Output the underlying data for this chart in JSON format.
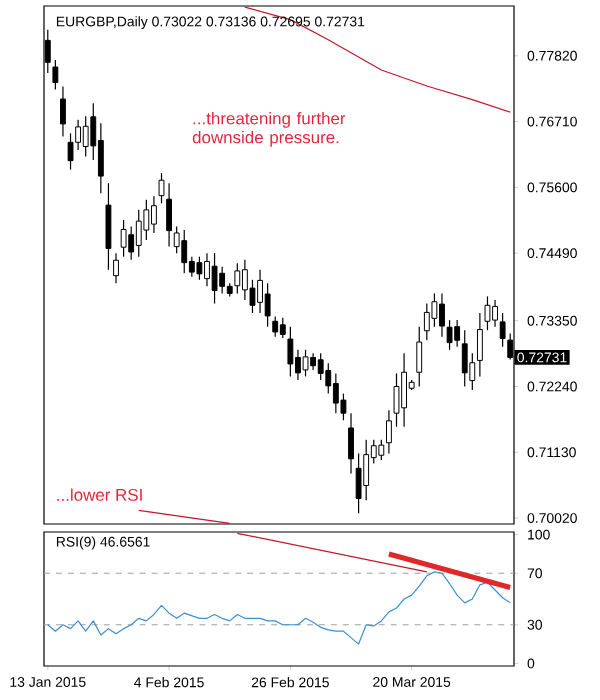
{
  "chart_data": [
    {
      "type": "candlestick",
      "title": "EURGBP,Daily  0.73022 0.73136 0.72695 0.72731",
      "categories": [
        null,
        null,
        null,
        null,
        null,
        null,
        null,
        null,
        null,
        null,
        null,
        null,
        null,
        null,
        null,
        null,
        null,
        null,
        null,
        null,
        null,
        null,
        null,
        null,
        null,
        null,
        null,
        null,
        null,
        null,
        null,
        null,
        null,
        null,
        null,
        null,
        null,
        null,
        null,
        null,
        null,
        null,
        null,
        null,
        null,
        null,
        null,
        null,
        null,
        null,
        null,
        null,
        null,
        null,
        null,
        null,
        null,
        null,
        null,
        null,
        null,
        null
      ],
      "ohlc": [
        [
          0.7808,
          0.7826,
          0.7753,
          0.7771
        ],
        [
          0.7763,
          0.7775,
          0.7725,
          0.7737
        ],
        [
          0.7709,
          0.773,
          0.7646,
          0.7667
        ],
        [
          0.7636,
          0.7651,
          0.759,
          0.7605
        ],
        [
          0.7636,
          0.7674,
          0.7623,
          0.7662
        ],
        [
          0.7629,
          0.768,
          0.7612,
          0.7663
        ],
        [
          0.7679,
          0.7702,
          0.7606,
          0.763
        ],
        [
          0.7639,
          0.7668,
          0.755,
          0.7579
        ],
        [
          0.753,
          0.7567,
          0.7421,
          0.7457
        ],
        [
          0.7411,
          0.7449,
          0.7398,
          0.7437
        ],
        [
          0.7459,
          0.7505,
          0.7443,
          0.7489
        ],
        [
          0.748,
          0.7494,
          0.7438,
          0.7451
        ],
        [
          0.7462,
          0.7522,
          0.7443,
          0.7503
        ],
        [
          0.7488,
          0.7539,
          0.7471,
          0.7522
        ],
        [
          0.7498,
          0.7545,
          0.7483,
          0.7529
        ],
        [
          0.7546,
          0.7584,
          0.7533,
          0.7572
        ],
        [
          0.754,
          0.7567,
          0.746,
          0.7487
        ],
        [
          0.746,
          0.7494,
          0.7449,
          0.7483
        ],
        [
          0.747,
          0.7488,
          0.7415,
          0.7433
        ],
        [
          0.7435,
          0.7443,
          0.7409,
          0.7417
        ],
        [
          0.7433,
          0.7443,
          0.7404,
          0.7414
        ],
        [
          0.7406,
          0.7449,
          0.7393,
          0.7435
        ],
        [
          0.7427,
          0.7449,
          0.7364,
          0.7386
        ],
        [
          0.7415,
          0.7426,
          0.7381,
          0.7393
        ],
        [
          0.7393,
          0.7398,
          0.7376,
          0.7381
        ],
        [
          0.7394,
          0.7432,
          0.7381,
          0.7419
        ],
        [
          0.7387,
          0.7438,
          0.737,
          0.7421
        ],
        [
          0.739,
          0.7404,
          0.7348,
          0.7361
        ],
        [
          0.7366,
          0.7421,
          0.7348,
          0.7403
        ],
        [
          0.738,
          0.7398,
          0.7325,
          0.7343
        ],
        [
          0.7334,
          0.7342,
          0.7308,
          0.7316
        ],
        [
          0.7328,
          0.734,
          0.7306,
          0.7312
        ],
        [
          0.7304,
          0.7325,
          0.7241,
          0.7262
        ],
        [
          0.7273,
          0.7286,
          0.7235,
          0.7247
        ],
        [
          0.7252,
          0.7286,
          0.7241,
          0.7274
        ],
        [
          0.7273,
          0.728,
          0.7252,
          0.7259
        ],
        [
          0.7269,
          0.728,
          0.7235,
          0.7246
        ],
        [
          0.7251,
          0.7263,
          0.7212,
          0.7225
        ],
        [
          0.7229,
          0.7246,
          0.7179,
          0.7196
        ],
        [
          0.7201,
          0.7212,
          0.7167,
          0.7179
        ],
        [
          0.7154,
          0.7179,
          0.7077,
          0.7102
        ],
        [
          0.7086,
          0.7111,
          0.701,
          0.7035
        ],
        [
          0.7057,
          0.7134,
          0.7032,
          0.7109
        ],
        [
          0.7104,
          0.7134,
          0.7094,
          0.7124
        ],
        [
          0.7108,
          0.7134,
          0.71,
          0.7125
        ],
        [
          0.7129,
          0.7184,
          0.7111,
          0.7166
        ],
        [
          0.7179,
          0.7246,
          0.7156,
          0.7224
        ],
        [
          0.7188,
          0.728,
          0.7156,
          0.7248
        ],
        [
          0.7221,
          0.7235,
          0.7218,
          0.7231
        ],
        [
          0.7248,
          0.7325,
          0.7224,
          0.7299
        ],
        [
          0.7318,
          0.7364,
          0.7302,
          0.7349
        ],
        [
          0.7339,
          0.7381,
          0.7325,
          0.7367
        ],
        [
          0.7363,
          0.7381,
          0.7308,
          0.7326
        ],
        [
          0.7324,
          0.7336,
          0.7286,
          0.7298
        ],
        [
          0.7325,
          0.7336,
          0.7291,
          0.7302
        ],
        [
          0.7296,
          0.7319,
          0.7224,
          0.7247
        ],
        [
          0.7234,
          0.728,
          0.7218,
          0.7264
        ],
        [
          0.7268,
          0.7348,
          0.7241,
          0.732
        ],
        [
          0.7334,
          0.7376,
          0.7319,
          0.7361
        ],
        [
          0.7336,
          0.737,
          0.7325,
          0.7359
        ],
        [
          0.7333,
          0.7348,
          0.7291,
          0.7305
        ],
        [
          0.73022,
          0.73136,
          0.72695,
          0.72731
        ]
      ],
      "series": [
        {
          "type": "line",
          "color": "#c0182a",
          "values": [
            null,
            null,
            null,
            null,
            null,
            null,
            null,
            null,
            null,
            null,
            null,
            null,
            null,
            null,
            null,
            null,
            null,
            null,
            null,
            null,
            null,
            null,
            null,
            null,
            null,
            null,
            0.7864,
            null,
            null,
            null,
            null,
            null,
            0.7843,
            null,
            null,
            null,
            null,
            0.7809,
            null,
            null,
            null,
            null,
            null,
            null,
            0.7758,
            null,
            null,
            null,
            null,
            null,
            0.7731,
            null,
            null,
            null,
            null,
            null,
            0.7708,
            null,
            null,
            null,
            null,
            0.7687
          ]
        },
        {
          "type": "line",
          "color": "#c0182a",
          "values": [
            null,
            null,
            null,
            null,
            null,
            null,
            null,
            null,
            null,
            null,
            null,
            null,
            0.7015,
            null,
            null,
            null,
            null,
            null,
            null,
            null,
            null,
            null,
            null,
            null,
            0.6993,
            null,
            null,
            null,
            null,
            null,
            null,
            null,
            null,
            null,
            null,
            null,
            null,
            null,
            null,
            null,
            null,
            null,
            null,
            null,
            null,
            null,
            null,
            null,
            null,
            null,
            null,
            null,
            null,
            null,
            null,
            null,
            null,
            null,
            null,
            null,
            null,
            null
          ]
        }
      ],
      "ylim": [
        0.6992,
        0.7866
      ],
      "yticks": [
        {
          "value": 0.7002,
          "label": "0.70020"
        },
        {
          "value": 0.7113,
          "label": "0.71130"
        },
        {
          "value": 0.7224,
          "label": "0.72240"
        },
        {
          "value": 0.7335,
          "label": "0.73350"
        },
        {
          "value": 0.7449,
          "label": "0.74490"
        },
        {
          "value": 0.756,
          "label": "0.75600"
        },
        {
          "value": 0.7671,
          "label": "0.76710"
        },
        {
          "value": 0.7782,
          "label": "0.77820"
        }
      ],
      "tick_labels": "y",
      "annotations": [
        "...threatening further downside pressure.",
        "...lower RSI",
        "0.72731"
      ]
    },
    {
      "type": "line",
      "title": "RSI(9) 46.6561",
      "categories": [
        "13 Jan 2015",
        null,
        null,
        null,
        null,
        null,
        null,
        null,
        null,
        null,
        null,
        null,
        null,
        null,
        null,
        null,
        "4 Feb 2015",
        null,
        null,
        null,
        null,
        null,
        null,
        null,
        null,
        null,
        null,
        null,
        null,
        null,
        null,
        null,
        "26 Feb 2015",
        null,
        null,
        null,
        null,
        null,
        null,
        null,
        null,
        null,
        null,
        null,
        null,
        null,
        null,
        null,
        "20 Mar 2015",
        null,
        null,
        null,
        null,
        null,
        null,
        null,
        null,
        null,
        null,
        null,
        null,
        null
      ],
      "series": [
        {
          "color": "#3c8fd0",
          "values": [
            30,
            25,
            30,
            27,
            33,
            25,
            33,
            22,
            27,
            23,
            27,
            30,
            35,
            33,
            38,
            45,
            39,
            35,
            39,
            37,
            35,
            35,
            38,
            35,
            33,
            38,
            35,
            35,
            35,
            33,
            33,
            30,
            30,
            30,
            35,
            32,
            28,
            26,
            25,
            25,
            20,
            15,
            30,
            29,
            33,
            40,
            43,
            50,
            53,
            60,
            68,
            71,
            70,
            62,
            53,
            47,
            50,
            61,
            63,
            57,
            51,
            47
          ]
        },
        {
          "color": "#c0182a",
          "values": [
            null,
            null,
            null,
            null,
            null,
            null,
            null,
            null,
            null,
            null,
            null,
            null,
            null,
            null,
            null,
            null,
            null,
            null,
            null,
            null,
            null,
            null,
            null,
            null,
            null,
            101,
            null,
            null,
            null,
            null,
            null,
            null,
            null,
            null,
            null,
            null,
            null,
            null,
            null,
            null,
            null,
            null,
            null,
            null,
            null,
            null,
            null,
            null,
            null,
            null,
            71,
            null,
            null,
            null,
            null,
            null,
            null,
            null,
            null,
            null,
            null,
            null
          ]
        },
        {
          "color": "#e0282a",
          "values": [
            null,
            null,
            null,
            null,
            null,
            null,
            null,
            null,
            null,
            null,
            null,
            null,
            null,
            null,
            null,
            null,
            null,
            null,
            null,
            null,
            null,
            null,
            null,
            null,
            null,
            null,
            null,
            null,
            null,
            null,
            null,
            null,
            null,
            null,
            null,
            null,
            null,
            null,
            null,
            null,
            null,
            null,
            null,
            null,
            null,
            85,
            null,
            null,
            null,
            null,
            null,
            null,
            null,
            null,
            null,
            null,
            null,
            null,
            null,
            null,
            null,
            59
          ]
        }
      ],
      "ylim": [
        -2,
        102
      ],
      "yticks": [
        0,
        30,
        70,
        100
      ],
      "ref_lines": [
        {
          "axis": "y",
          "value": 70,
          "color": "#a0a0a0",
          "line_style": "dashed"
        },
        {
          "axis": "y",
          "value": 30,
          "color": "#a0a0a0",
          "line_style": "dashed"
        }
      ]
    }
  ]
}
